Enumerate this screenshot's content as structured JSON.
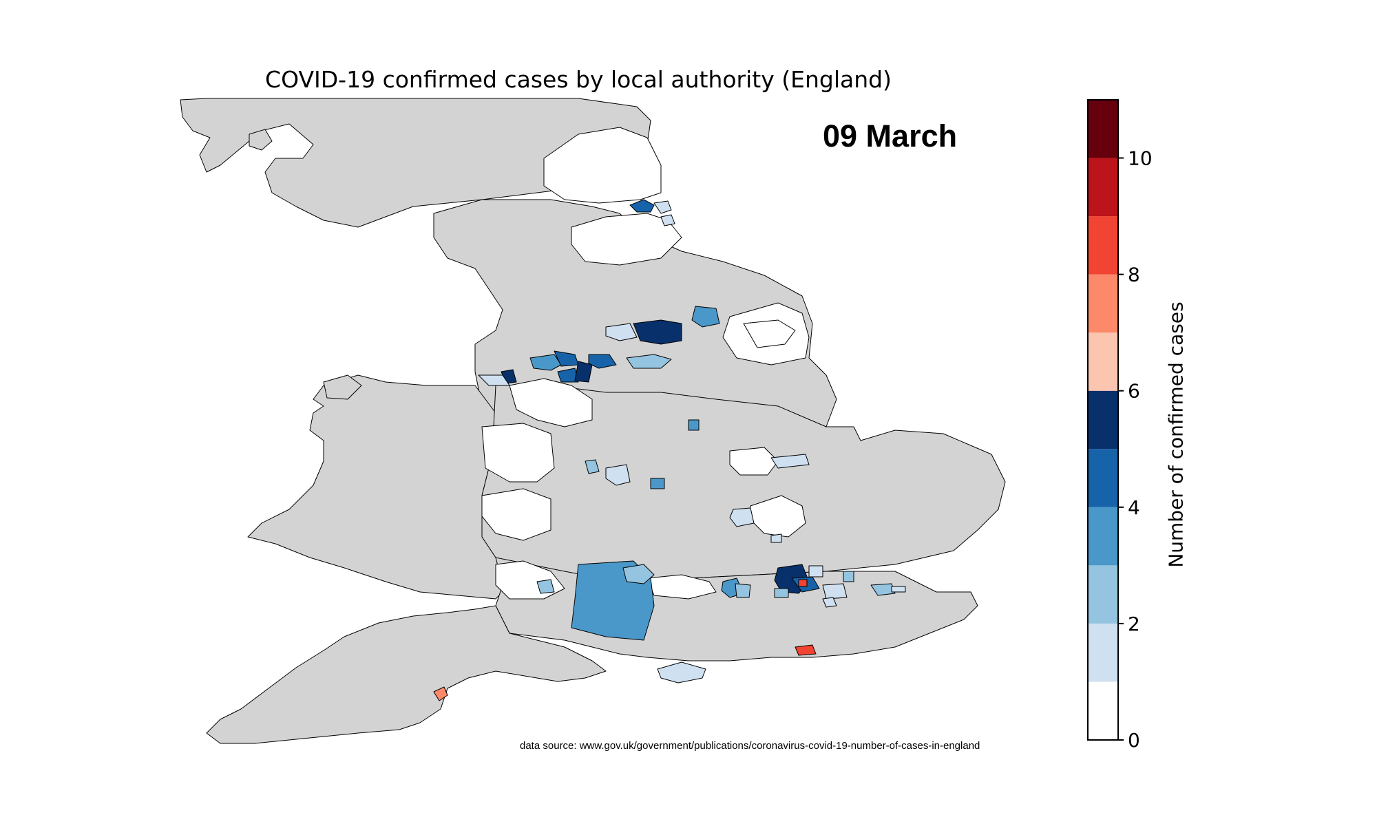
{
  "title": "COVID-19 confirmed cases by local authority (England)",
  "date": "09 March",
  "source": "data source: www.gov.uk/government/publications/coronavirus-covid-19-number-of-cases-in-england",
  "colorbar": {
    "label": "Number of confirmed cases",
    "min": 0,
    "max": 11,
    "ticks": [
      "0",
      "2",
      "4",
      "6",
      "8",
      "10"
    ],
    "tick_values": [
      0,
      2,
      4,
      6,
      8,
      10
    ],
    "bins": [
      {
        "from": 0,
        "to": 1,
        "color": "#ffffff"
      },
      {
        "from": 1,
        "to": 2,
        "color": "#cfe0f1"
      },
      {
        "from": 2,
        "to": 3,
        "color": "#94c4df"
      },
      {
        "from": 3,
        "to": 4,
        "color": "#4a98c9"
      },
      {
        "from": 4,
        "to": 5,
        "color": "#1763aa"
      },
      {
        "from": 5,
        "to": 6,
        "color": "#08306b"
      },
      {
        "from": 6,
        "to": 7,
        "color": "#fcc5b0"
      },
      {
        "from": 7,
        "to": 8,
        "color": "#fc8a6a"
      },
      {
        "from": 8,
        "to": 9,
        "color": "#f14432"
      },
      {
        "from": 9,
        "to": 10,
        "color": "#bc141a"
      },
      {
        "from": 10,
        "to": 11,
        "color": "#67000d"
      }
    ]
  },
  "colors": {
    "other_region": "#d3d3d3",
    "zero_cases": "#ffffff",
    "border": "#000000"
  }
}
